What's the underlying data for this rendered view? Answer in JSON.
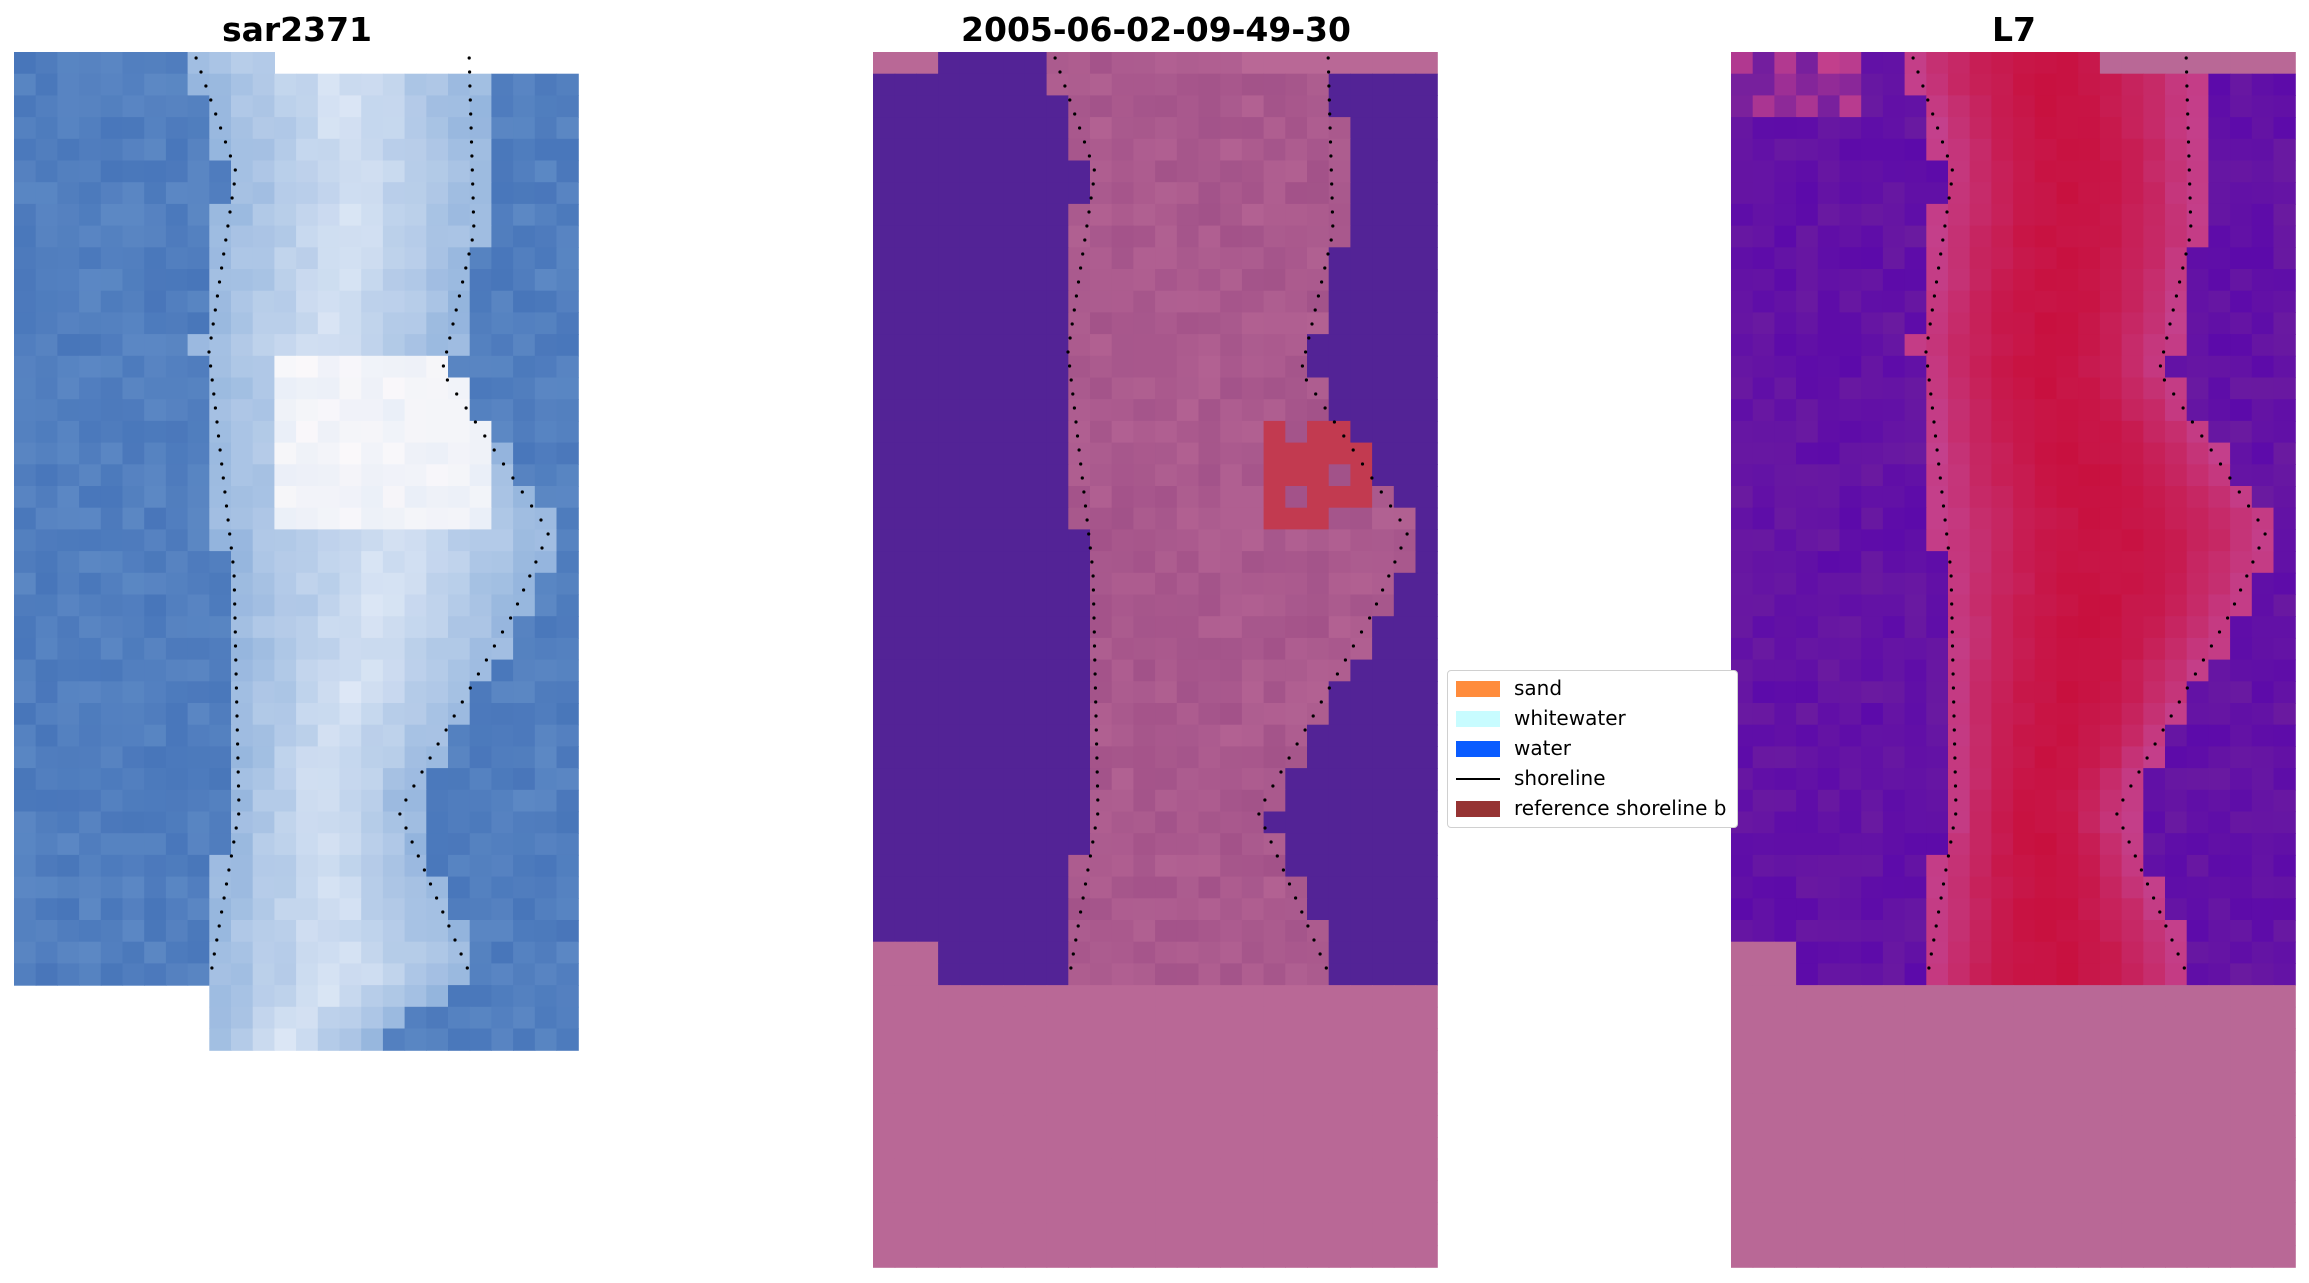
{
  "panels": {
    "left": {
      "title": "sar2371"
    },
    "middle": {
      "title": "2005-06-02-09-49-30"
    },
    "right": {
      "title": "L7"
    }
  },
  "legend": {
    "items": [
      {
        "label": "sand",
        "color": "#ff8c3c"
      },
      {
        "label": "whitewater",
        "color": "#c8fcff"
      },
      {
        "label": "water",
        "color": "#0a5cff"
      },
      {
        "label": "shoreline",
        "color": "#000000"
      },
      {
        "label": "reference shoreline b",
        "color": "#963434"
      }
    ]
  },
  "colors": {
    "water_rgb": "#4a78b8",
    "surf_rgb": "#dfe8f5",
    "bg_purple_mid": "#532396",
    "sand_pink": "#b96896",
    "red_patch": "#c23a50",
    "l7_purple": "#6a1aa0",
    "l7_red": "#c8103e"
  }
}
